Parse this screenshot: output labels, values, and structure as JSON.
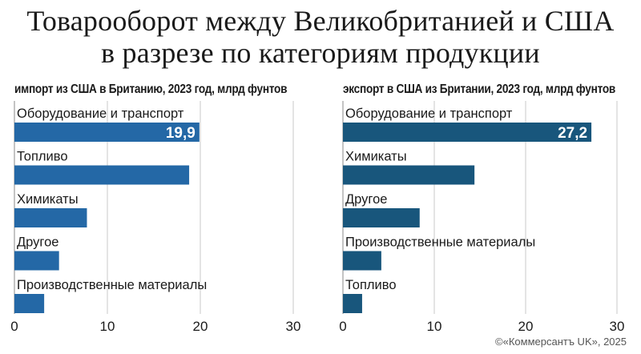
{
  "title": {
    "line1": "Товарооборот между Великобританией и США",
    "line2": "в разрезе по категориям продукции"
  },
  "credit": "©«Коммерсантъ UK», 2025",
  "colors": {
    "import": "#2468a6",
    "export": "#18567c",
    "grid": "#c8c8c8",
    "axis": "#888888"
  },
  "chart_data": [
    {
      "type": "bar",
      "orientation": "horizontal",
      "title": "импорт из США в Британию, 2023 год, млрд фунтов",
      "categories": [
        "Оборудование и транспорт",
        "Топливо",
        "Химикаты",
        "Другое",
        "Производственные материалы"
      ],
      "values": [
        19.9,
        18.8,
        7.8,
        4.8,
        3.2
      ],
      "value_labels": [
        "19,9",
        "",
        "",
        "",
        ""
      ],
      "xlim": [
        0,
        30
      ],
      "xticks": [
        "0",
        "10",
        "20",
        "30"
      ],
      "grid": true
    },
    {
      "type": "bar",
      "orientation": "horizontal",
      "title": "экспорт в США из Британии, 2023 год, млрд фунтов",
      "categories": [
        "Оборудование и транспорт",
        "Химикаты",
        "Другое",
        "Производственные материалы",
        "Топливо"
      ],
      "values": [
        27.2,
        14.4,
        8.4,
        4.2,
        2.1
      ],
      "value_labels": [
        "27,2",
        "",
        "",
        "",
        ""
      ],
      "xlim": [
        0,
        30
      ],
      "xticks": [
        "0",
        "10",
        "20",
        "30"
      ],
      "grid": true
    }
  ]
}
